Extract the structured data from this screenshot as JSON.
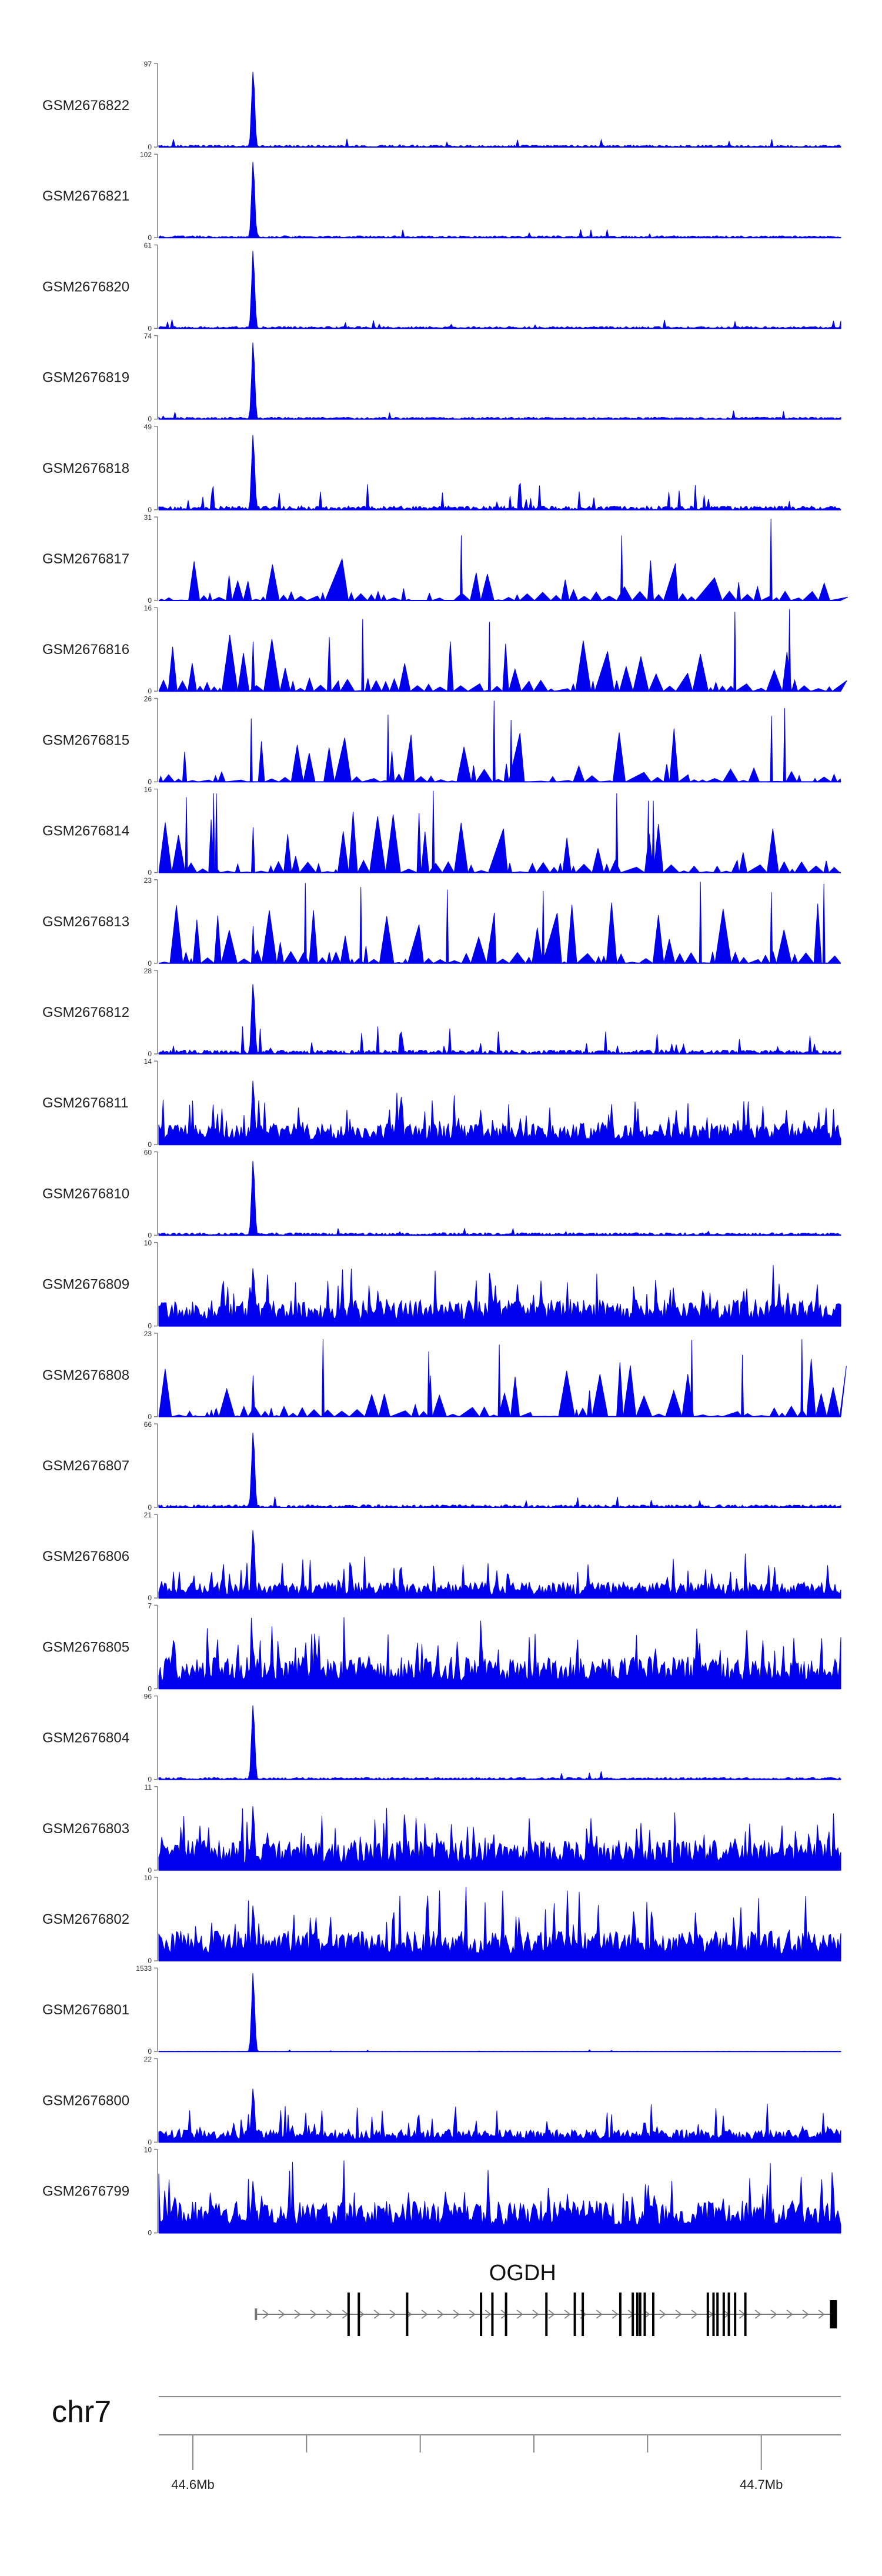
{
  "chart_data": {
    "type": "area",
    "title": "",
    "signal_color": "#0000ee",
    "axis_color": "#7f7f7f",
    "x_domain": [
      44.594,
      44.714
    ],
    "peak_position": 44.6106,
    "tracks": [
      {
        "name": "GSM2676822",
        "ymax": 97,
        "ymin": 0,
        "profile": "peak",
        "seed": 22,
        "peak": 0.96,
        "base": 0.03,
        "var": 0.1
      },
      {
        "name": "GSM2676821",
        "ymax": 102,
        "ymin": 0,
        "profile": "peak",
        "seed": 21,
        "peak": 0.96,
        "base": 0.03,
        "var": 0.1
      },
      {
        "name": "GSM2676820",
        "ymax": 61,
        "ymin": 0,
        "profile": "peak",
        "seed": 20,
        "peak": 0.96,
        "base": 0.03,
        "var": 0.1
      },
      {
        "name": "GSM2676819",
        "ymax": 74,
        "ymin": 0,
        "profile": "peak",
        "seed": 19,
        "peak": 0.97,
        "base": 0.03,
        "var": 0.1
      },
      {
        "name": "GSM2676818",
        "ymax": 49,
        "ymin": 0,
        "profile": "mixed",
        "seed": 18,
        "peak": 0.95,
        "base": 0.08,
        "var": 0.3
      },
      {
        "name": "GSM2676817",
        "ymax": 31,
        "ymin": 0,
        "profile": "noisy",
        "seed": 17,
        "peak": 0.35,
        "base": 0.12,
        "var": 0.55
      },
      {
        "name": "GSM2676816",
        "ymax": 16,
        "ymin": 0,
        "profile": "noisy",
        "seed": 16,
        "peak": 0.6,
        "base": 0.15,
        "var": 0.75
      },
      {
        "name": "GSM2676815",
        "ymax": 26,
        "ymin": 0,
        "profile": "noisy",
        "seed": 15,
        "peak": 0.2,
        "base": 0.1,
        "var": 0.65
      },
      {
        "name": "GSM2676814",
        "ymax": 16,
        "ymin": 0,
        "profile": "noisy",
        "seed": 14,
        "peak": 0.55,
        "base": 0.15,
        "var": 0.75
      },
      {
        "name": "GSM2676813",
        "ymax": 23,
        "ymin": 0,
        "profile": "noisy",
        "seed": 13,
        "peak": 0.45,
        "base": 0.15,
        "var": 0.75
      },
      {
        "name": "GSM2676812",
        "ymax": 28,
        "ymin": 0,
        "profile": "mixed",
        "seed": 12,
        "peak": 0.92,
        "base": 0.08,
        "var": 0.3
      },
      {
        "name": "GSM2676811",
        "ymax": 14,
        "ymin": 0,
        "profile": "dense",
        "seed": 11,
        "peak": 0.8,
        "base": 0.2,
        "var": 0.4
      },
      {
        "name": "GSM2676810",
        "ymax": 60,
        "ymin": 0,
        "profile": "peak",
        "seed": 10,
        "peak": 0.94,
        "base": 0.04,
        "var": 0.12
      },
      {
        "name": "GSM2676809",
        "ymax": 10,
        "ymin": 0,
        "profile": "dense",
        "seed": 9,
        "peak": 0.75,
        "base": 0.25,
        "var": 0.5
      },
      {
        "name": "GSM2676808",
        "ymax": 23,
        "ymin": 0,
        "profile": "noisy",
        "seed": 8,
        "peak": 0.5,
        "base": 0.15,
        "var": 0.75
      },
      {
        "name": "GSM2676807",
        "ymax": 66,
        "ymin": 0,
        "profile": "peak",
        "seed": 7,
        "peak": 0.96,
        "base": 0.04,
        "var": 0.12
      },
      {
        "name": "GSM2676806",
        "ymax": 21,
        "ymin": 0,
        "profile": "dense",
        "seed": 6,
        "peak": 0.9,
        "base": 0.15,
        "var": 0.4
      },
      {
        "name": "GSM2676805",
        "ymax": 7,
        "ymin": 0,
        "profile": "dense",
        "seed": 5,
        "peak": 0.55,
        "base": 0.3,
        "var": 0.55
      },
      {
        "name": "GSM2676804",
        "ymax": 96,
        "ymin": 0,
        "profile": "peak",
        "seed": 4,
        "peak": 0.96,
        "base": 0.03,
        "var": 0.1
      },
      {
        "name": "GSM2676803",
        "ymax": 11,
        "ymin": 0,
        "profile": "dense",
        "seed": 3,
        "peak": 0.8,
        "base": 0.28,
        "var": 0.45
      },
      {
        "name": "GSM2676802",
        "ymax": 10,
        "ymin": 0,
        "profile": "dense",
        "seed": 2,
        "peak": 0.7,
        "base": 0.28,
        "var": 0.55
      },
      {
        "name": "GSM2676801",
        "ymax": 1533,
        "ymin": 0,
        "profile": "peak",
        "seed": 1,
        "peak": 0.97,
        "base": 0.005,
        "var": 0.02
      },
      {
        "name": "GSM2676800",
        "ymax": 22,
        "ymin": 0,
        "profile": "dense",
        "seed": 99,
        "peak": 0.7,
        "base": 0.12,
        "var": 0.35
      },
      {
        "name": "GSM2676799",
        "ymax": 10,
        "ymin": 0,
        "profile": "dense",
        "seed": 98,
        "peak": 0.65,
        "base": 0.3,
        "var": 0.55
      }
    ],
    "gene": {
      "name": "OGDH",
      "strand": "+",
      "start": 44.6111,
      "end": 44.7132,
      "exons": [
        44.6111,
        44.6274,
        44.6292,
        44.6377,
        44.6507,
        44.6527,
        44.6551,
        44.6622,
        44.6672,
        44.6686,
        44.6752,
        44.6774,
        44.6782,
        44.6787,
        44.6795,
        44.681,
        44.6906,
        44.6916,
        44.6923,
        44.6934,
        44.6943,
        44.6954,
        44.6972,
        44.7127
      ]
    },
    "chromosome": "chr7",
    "axis_ticks": [
      44.6,
      44.62,
      44.64,
      44.66,
      44.68,
      44.7
    ],
    "axis_tick_labels": [
      "44.6Mb",
      "",
      "",
      "",
      "",
      "44.7Mb"
    ]
  }
}
